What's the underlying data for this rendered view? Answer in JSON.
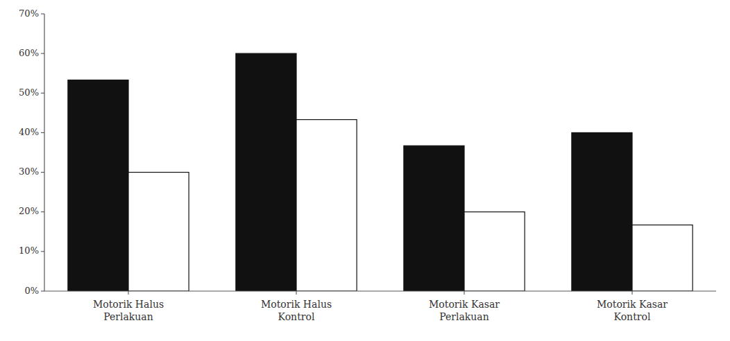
{
  "chart_data": {
    "type": "bar",
    "categories": [
      "Motorik Halus\nPerlakuan",
      "Motorik Halus\nKontrol",
      "Motorik Kasar\nPerlakuan",
      "Motorik Kasar\nKontrol"
    ],
    "series": [
      {
        "color": "#111111",
        "values": [
          53.3,
          60.0,
          36.7,
          40.0
        ]
      },
      {
        "color": "#ffffff",
        "values": [
          30.0,
          43.3,
          20.0,
          16.7
        ]
      }
    ],
    "ylim": [
      0,
      70
    ],
    "yticks": [
      {
        "value": 0,
        "label": "0%"
      },
      {
        "value": 10,
        "label": "10%"
      },
      {
        "value": 20,
        "label": "20%"
      },
      {
        "value": 30,
        "label": "30%"
      },
      {
        "value": 40,
        "label": "40%"
      },
      {
        "value": 50,
        "label": "50%"
      },
      {
        "value": 60,
        "label": "60%"
      },
      {
        "value": 70,
        "label": "70%"
      }
    ],
    "grid": false
  }
}
